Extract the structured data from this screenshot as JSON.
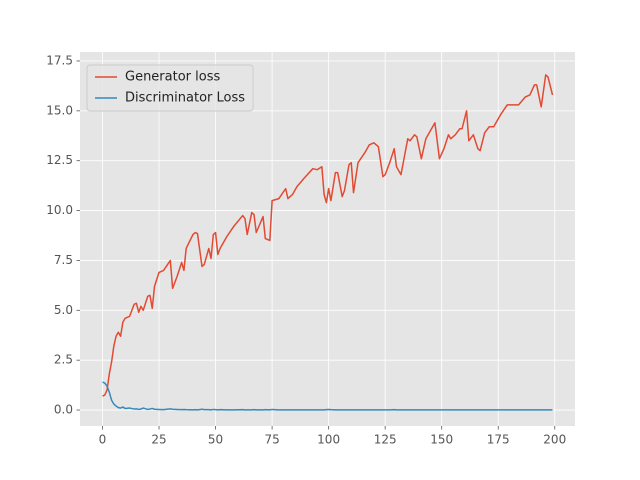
{
  "chart_data": {
    "type": "line",
    "x": [
      0,
      1,
      2,
      3,
      4,
      5,
      6,
      7,
      8,
      9,
      10,
      12,
      14,
      15,
      16,
      17,
      18,
      20,
      21,
      22,
      23,
      25,
      27,
      30,
      31,
      33,
      35,
      36,
      37,
      40,
      41,
      42,
      44,
      45,
      47,
      48,
      49,
      50,
      51,
      52,
      55,
      58,
      62,
      63,
      64,
      66,
      67,
      68,
      71,
      72,
      74,
      75,
      78,
      81,
      82,
      84,
      86,
      89,
      93,
      95,
      97,
      98,
      99,
      100,
      101,
      103,
      104,
      106,
      107,
      109,
      110,
      111,
      113,
      116,
      118,
      120,
      122,
      124,
      125,
      127,
      129,
      130,
      132,
      135,
      136,
      138,
      139,
      141,
      143,
      146,
      147,
      149,
      151,
      153,
      154,
      156,
      158,
      159,
      161,
      162,
      164,
      166,
      167,
      169,
      171,
      173,
      176,
      179,
      181,
      184,
      187,
      189,
      191,
      192,
      194,
      196,
      197,
      199
    ],
    "series": [
      {
        "name": "Generator loss",
        "color": "#E24A33",
        "values": [
          0.7,
          0.75,
          1.0,
          1.8,
          2.4,
          3.2,
          3.7,
          3.9,
          3.7,
          4.4,
          4.6,
          4.7,
          5.3,
          5.35,
          4.9,
          5.2,
          5.0,
          5.7,
          5.75,
          5.1,
          6.2,
          6.9,
          7.0,
          7.5,
          6.1,
          6.7,
          7.4,
          7.0,
          8.1,
          8.8,
          8.9,
          8.85,
          7.2,
          7.3,
          8.1,
          7.6,
          8.8,
          8.9,
          7.8,
          8.1,
          8.7,
          9.2,
          9.75,
          9.6,
          8.8,
          9.9,
          9.8,
          8.9,
          9.7,
          8.6,
          8.5,
          10.5,
          10.6,
          11.1,
          10.6,
          10.8,
          11.2,
          11.6,
          12.1,
          12.05,
          12.2,
          10.8,
          10.4,
          11.1,
          10.5,
          11.9,
          11.9,
          10.7,
          11.0,
          12.3,
          12.4,
          10.9,
          12.4,
          12.9,
          13.3,
          13.4,
          13.2,
          11.7,
          11.8,
          12.4,
          13.1,
          12.2,
          11.8,
          13.6,
          13.5,
          13.8,
          13.7,
          12.6,
          13.6,
          14.2,
          14.4,
          12.6,
          13.1,
          13.8,
          13.6,
          13.8,
          14.1,
          14.1,
          15.0,
          13.5,
          13.8,
          13.1,
          13.0,
          13.9,
          14.2,
          14.2,
          14.8,
          15.3,
          15.3,
          15.3,
          15.7,
          15.8,
          16.3,
          16.3,
          15.2,
          16.8,
          16.7,
          15.8
        ]
      },
      {
        "name": "Discriminator Loss",
        "color": "#348ABD",
        "values": [
          1.4,
          1.35,
          1.2,
          0.9,
          0.5,
          0.3,
          0.2,
          0.12,
          0.1,
          0.15,
          0.08,
          0.1,
          0.05,
          0.06,
          0.03,
          0.05,
          0.1,
          0.03,
          0.05,
          0.08,
          0.04,
          0.03,
          0.02,
          0.06,
          0.04,
          0.03,
          0.02,
          0.03,
          0.02,
          0.01,
          0.02,
          0.01,
          0.04,
          0.02,
          0.02,
          0.01,
          0.03,
          0.02,
          0.01,
          0.02,
          0.01,
          0.01,
          0.02,
          0.01,
          0.01,
          0.01,
          0.02,
          0.01,
          0.01,
          0.02,
          0.01,
          0.03,
          0.01,
          0.01,
          0.01,
          0.01,
          0.01,
          0.01,
          0.01,
          0.01,
          0.01,
          0.01,
          0.02,
          0.03,
          0.02,
          0.01,
          0.01,
          0.01,
          0.01,
          0.01,
          0.01,
          0.01,
          0.01,
          0.01,
          0.01,
          0.01,
          0.01,
          0.01,
          0.01,
          0.01,
          0.02,
          0.01,
          0.01,
          0.01,
          0.01,
          0.01,
          0.01,
          0.01,
          0.01,
          0.01,
          0.01,
          0.01,
          0.01,
          0.01,
          0.01,
          0.01,
          0.01,
          0.01,
          0.01,
          0.01,
          0.01,
          0.01,
          0.01,
          0.01,
          0.01,
          0.01,
          0.01,
          0.01,
          0.01,
          0.01,
          0.01,
          0.01,
          0.01,
          0.01,
          0.01,
          0.01,
          0.01,
          0.01
        ]
      }
    ],
    "xlim": [
      -9.95,
      208.95
    ],
    "xticks": [
      0,
      25,
      50,
      75,
      100,
      125,
      150,
      175,
      200
    ],
    "ylim": [
      -0.8,
      17.95
    ],
    "yticks": [
      {
        "value": 0,
        "label": "0.0"
      },
      2.5,
      {
        "value": 5,
        "label": "5.0"
      },
      7.5,
      {
        "value": 10,
        "label": "10.0"
      },
      12.5,
      {
        "value": 15,
        "label": "15.0"
      },
      17.5
    ],
    "grid": true,
    "legend": "upper-left"
  }
}
